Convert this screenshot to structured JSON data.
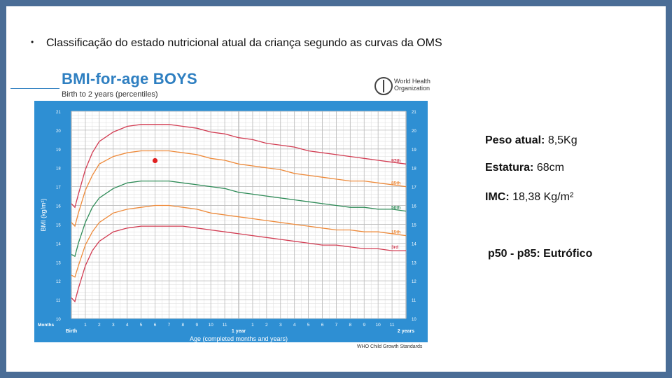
{
  "slide": {
    "bullet": "•",
    "heading": "Classificação do estado nutricional atual da criança segundo as curvas da OMS"
  },
  "info": {
    "weight_label": "Peso atual:",
    "weight_value": "8,5Kg",
    "height_label": "Estatura:",
    "height_value": "68cm",
    "bmi_label": "IMC:",
    "bmi_value": "18,38 Kg/m²",
    "classification": "p50 - p85: Eutrófico"
  },
  "who": {
    "org_line1": "World Health",
    "org_line2": "Organization",
    "footer": "WHO Child Growth Standards"
  },
  "colors": {
    "chart_background": "#2e8fd3",
    "grid": "#bcbcbc",
    "p97": "#d23c52",
    "p85": "#ee8a3a",
    "p50": "#2e8b57",
    "p15": "#ee8a3a",
    "p3": "#d23c52",
    "marker": "#e02020"
  },
  "chart_data": {
    "type": "line",
    "title": "BMI-for-age BOYS",
    "subtitle": "Birth to 2 years (percentiles)",
    "ylabel": "BMI (kg/m²)",
    "xlabel": "Age (completed months and years)",
    "xlim": [
      0,
      24
    ],
    "ylim": [
      10,
      21
    ],
    "grid": true,
    "x_ticks_label": "Months",
    "x_tick_labels": [
      "Birth",
      "1",
      "2",
      "3",
      "4",
      "5",
      "6",
      "7",
      "8",
      "9",
      "10",
      "11",
      "1 year",
      "1",
      "2",
      "3",
      "4",
      "5",
      "6",
      "7",
      "8",
      "9",
      "10",
      "11",
      "2 years"
    ],
    "y_ticks": [
      10,
      11,
      12,
      13,
      14,
      15,
      16,
      17,
      18,
      19,
      20,
      21
    ],
    "x": [
      0,
      0.25,
      0.5,
      1,
      1.5,
      2,
      3,
      4,
      5,
      6,
      7,
      8,
      9,
      10,
      11,
      12,
      13,
      14,
      15,
      16,
      17,
      18,
      19,
      20,
      21,
      22,
      23,
      24
    ],
    "series": [
      {
        "name": "97th",
        "values": [
          16.1,
          15.9,
          16.6,
          17.9,
          18.8,
          19.4,
          19.9,
          20.2,
          20.3,
          20.3,
          20.3,
          20.2,
          20.1,
          19.9,
          19.8,
          19.6,
          19.5,
          19.3,
          19.2,
          19.1,
          18.9,
          18.8,
          18.7,
          18.6,
          18.5,
          18.4,
          18.3,
          18.2
        ]
      },
      {
        "name": "85th",
        "values": [
          15.1,
          14.9,
          15.6,
          16.8,
          17.6,
          18.2,
          18.6,
          18.8,
          18.9,
          18.9,
          18.9,
          18.8,
          18.7,
          18.5,
          18.4,
          18.2,
          18.1,
          18.0,
          17.9,
          17.7,
          17.6,
          17.5,
          17.4,
          17.3,
          17.3,
          17.2,
          17.1,
          17.0
        ]
      },
      {
        "name": "50th",
        "values": [
          13.4,
          13.3,
          14.0,
          15.1,
          15.9,
          16.4,
          16.9,
          17.2,
          17.3,
          17.3,
          17.3,
          17.2,
          17.1,
          17.0,
          16.9,
          16.7,
          16.6,
          16.5,
          16.4,
          16.3,
          16.2,
          16.1,
          16.0,
          15.9,
          15.9,
          15.8,
          15.8,
          15.7
        ]
      },
      {
        "name": "15th",
        "values": [
          12.3,
          12.2,
          12.8,
          13.9,
          14.6,
          15.1,
          15.6,
          15.8,
          15.9,
          16.0,
          16.0,
          15.9,
          15.8,
          15.6,
          15.5,
          15.4,
          15.3,
          15.2,
          15.1,
          15.0,
          14.9,
          14.8,
          14.7,
          14.7,
          14.6,
          14.6,
          14.5,
          14.4
        ]
      },
      {
        "name": "3rd",
        "values": [
          11.1,
          10.9,
          11.6,
          12.8,
          13.6,
          14.1,
          14.6,
          14.8,
          14.9,
          14.9,
          14.9,
          14.9,
          14.8,
          14.7,
          14.6,
          14.5,
          14.4,
          14.3,
          14.2,
          14.1,
          14.0,
          13.9,
          13.9,
          13.8,
          13.7,
          13.7,
          13.6,
          13.6
        ]
      }
    ],
    "marker": {
      "x": 6,
      "y": 18.38
    }
  }
}
